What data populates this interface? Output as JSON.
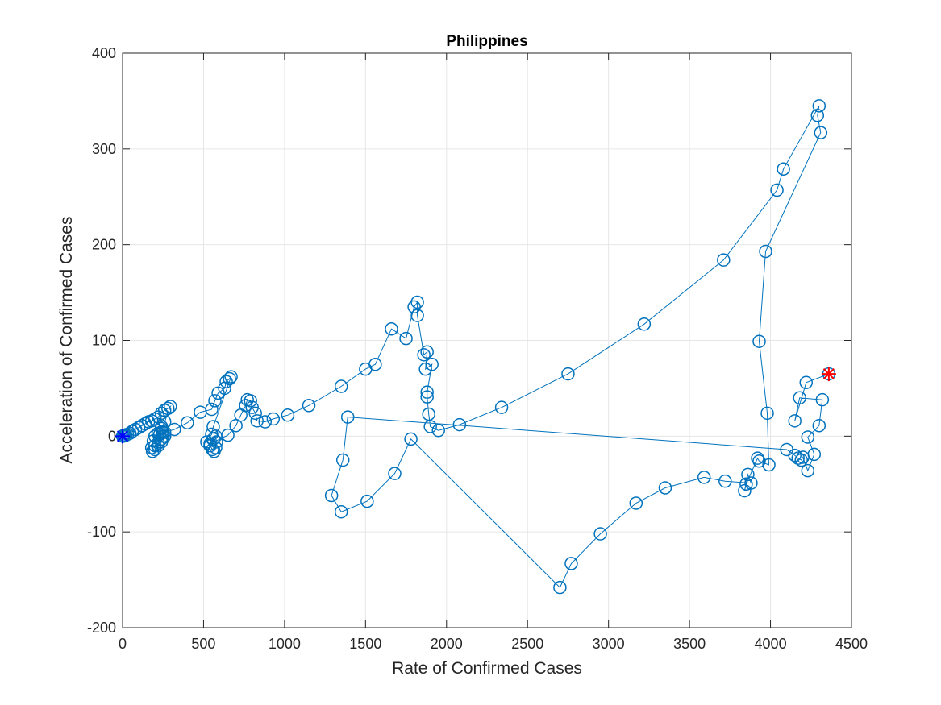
{
  "chart_data": {
    "type": "scatter",
    "title": "Philippines",
    "xlabel": "Rate of Confirmed Cases",
    "ylabel": "Acceleration of Confirmed Cases",
    "xlim": [
      0,
      4500
    ],
    "ylim": [
      -200,
      400
    ],
    "xticks": [
      0,
      500,
      1000,
      1500,
      2000,
      2500,
      3000,
      3500,
      4000,
      4500
    ],
    "yticks": [
      -200,
      -100,
      0,
      100,
      200,
      300,
      400
    ],
    "grid": true,
    "line_color": "#0072BD",
    "start_marker_color": "#0000FF",
    "end_marker_color": "#FF0000",
    "series": [
      {
        "values_xy": [
          [
            0,
            0
          ],
          [
            5,
            0
          ],
          [
            10,
            1
          ],
          [
            20,
            1
          ],
          [
            30,
            2
          ],
          [
            45,
            3
          ],
          [
            60,
            5
          ],
          [
            80,
            7
          ],
          [
            100,
            9
          ],
          [
            120,
            11
          ],
          [
            140,
            13
          ],
          [
            160,
            15
          ],
          [
            180,
            16
          ],
          [
            200,
            18
          ],
          [
            220,
            20
          ],
          [
            240,
            24
          ],
          [
            260,
            27
          ],
          [
            280,
            29
          ],
          [
            295,
            31
          ],
          [
            260,
            15
          ],
          [
            240,
            8
          ],
          [
            220,
            3
          ],
          [
            200,
            0
          ],
          [
            190,
            -5
          ],
          [
            180,
            -12
          ],
          [
            185,
            -16
          ],
          [
            200,
            -14
          ],
          [
            220,
            -10
          ],
          [
            240,
            -6
          ],
          [
            250,
            0
          ],
          [
            245,
            5
          ],
          [
            240,
            10
          ],
          [
            250,
            4
          ],
          [
            260,
            0
          ],
          [
            240,
            -3
          ],
          [
            220,
            -7
          ],
          [
            200,
            -10
          ],
          [
            230,
            2
          ],
          [
            260,
            4
          ],
          [
            320,
            7
          ],
          [
            400,
            14
          ],
          [
            480,
            25
          ],
          [
            550,
            28
          ],
          [
            570,
            37
          ],
          [
            590,
            45
          ],
          [
            630,
            50
          ],
          [
            640,
            57
          ],
          [
            660,
            60
          ],
          [
            670,
            62
          ],
          [
            560,
            10
          ],
          [
            550,
            2
          ],
          [
            520,
            -6
          ],
          [
            540,
            -10
          ],
          [
            555,
            -14
          ],
          [
            565,
            -16
          ],
          [
            575,
            -12
          ],
          [
            580,
            -6
          ],
          [
            575,
            0
          ],
          [
            560,
            -3
          ],
          [
            540,
            -8
          ],
          [
            650,
            1
          ],
          [
            700,
            11
          ],
          [
            730,
            22
          ],
          [
            760,
            32
          ],
          [
            770,
            38
          ],
          [
            790,
            37
          ],
          [
            800,
            30
          ],
          [
            820,
            24
          ],
          [
            830,
            16
          ],
          [
            880,
            15
          ],
          [
            930,
            18
          ],
          [
            1020,
            22
          ],
          [
            1150,
            32
          ],
          [
            1350,
            52
          ],
          [
            1500,
            70
          ],
          [
            1560,
            75
          ],
          [
            1660,
            112
          ],
          [
            1750,
            102
          ],
          [
            1800,
            135
          ],
          [
            1820,
            140
          ],
          [
            1820,
            126
          ],
          [
            1860,
            85
          ],
          [
            1880,
            88
          ],
          [
            1870,
            70
          ],
          [
            1910,
            75
          ],
          [
            1880,
            46
          ],
          [
            1880,
            41
          ],
          [
            1890,
            23
          ],
          [
            1900,
            10
          ],
          [
            1950,
            6
          ],
          [
            2080,
            12
          ],
          [
            2340,
            30
          ],
          [
            2750,
            65
          ],
          [
            3220,
            117
          ],
          [
            3710,
            184
          ],
          [
            4040,
            257
          ],
          [
            4080,
            279
          ],
          [
            4300,
            345
          ],
          [
            4290,
            335
          ],
          [
            4310,
            317
          ],
          [
            3970,
            193
          ],
          [
            3930,
            99
          ],
          [
            3980,
            24
          ],
          [
            3990,
            -30
          ],
          [
            3930,
            -26
          ],
          [
            3920,
            -23
          ],
          [
            3850,
            -50
          ],
          [
            3840,
            -57
          ],
          [
            3860,
            -40
          ],
          [
            3880,
            -49
          ],
          [
            3720,
            -47
          ],
          [
            3590,
            -43
          ],
          [
            3350,
            -54
          ],
          [
            3170,
            -70
          ],
          [
            2950,
            -102
          ],
          [
            2770,
            -133
          ],
          [
            2700,
            -158
          ],
          [
            1780,
            -3
          ],
          [
            1680,
            -39
          ],
          [
            1510,
            -68
          ],
          [
            1350,
            -79
          ],
          [
            1290,
            -62
          ],
          [
            1360,
            -25
          ],
          [
            1390,
            20
          ],
          [
            4100,
            -14
          ],
          [
            4150,
            -20
          ],
          [
            4170,
            -23
          ],
          [
            4190,
            -25
          ],
          [
            4200,
            -22
          ],
          [
            4230,
            -36
          ],
          [
            4270,
            -19
          ],
          [
            4230,
            -1
          ],
          [
            4300,
            11
          ],
          [
            4320,
            38
          ],
          [
            4180,
            40
          ],
          [
            4150,
            16
          ],
          [
            4220,
            56
          ],
          [
            4360,
            65
          ]
        ]
      }
    ]
  }
}
